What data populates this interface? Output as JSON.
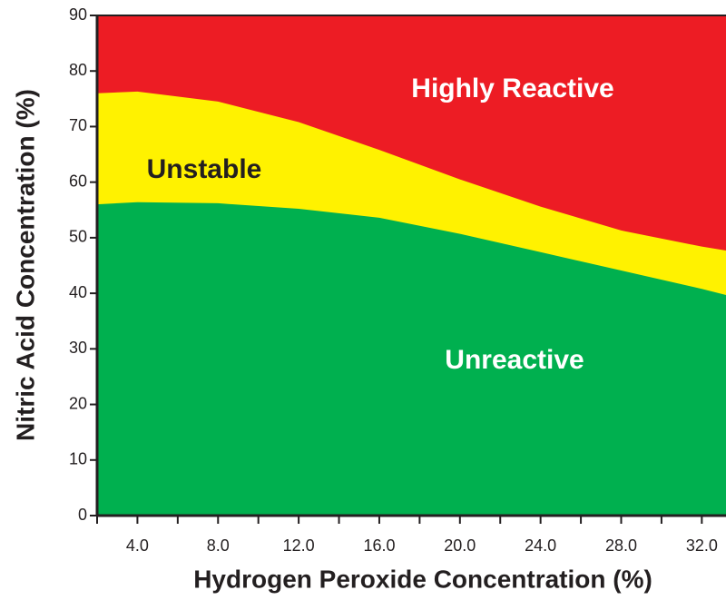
{
  "chart_data": {
    "type": "area",
    "x": [
      2,
      4,
      8,
      12,
      16,
      20,
      24,
      28,
      32,
      33.2
    ],
    "series": [
      {
        "name": "Unreactive",
        "color": "#00b04f",
        "label_color": "#ffffff",
        "values": [
          56.0,
          56.4,
          56.2,
          55.2,
          53.6,
          50.7,
          47.4,
          44.1,
          40.8,
          39.7
        ]
      },
      {
        "name": "Unstable",
        "color": "#fff200",
        "label_color": "#231f20",
        "values": [
          76.0,
          76.3,
          74.5,
          70.8,
          65.8,
          60.5,
          55.6,
          51.3,
          48.4,
          47.7
        ]
      }
    ],
    "background_region": {
      "name": "Highly Reactive",
      "color": "#ed1c24",
      "label_color": "#ffffff"
    },
    "xlabel": "Hydrogen Peroxide Concentration (%)",
    "ylabel": "Nitric Acid Concentration (%)",
    "xlim": [
      2,
      33.2
    ],
    "ylim": [
      0,
      90
    ],
    "xticks": [
      {
        "value": 4,
        "label": "4.0"
      },
      {
        "value": 8,
        "label": "8.0"
      },
      {
        "value": 12,
        "label": "12.0"
      },
      {
        "value": 16,
        "label": "16.0"
      },
      {
        "value": 20,
        "label": "20.0"
      },
      {
        "value": 24,
        "label": "24.0"
      },
      {
        "value": 28,
        "label": "28.0"
      },
      {
        "value": 32,
        "label": "32.0"
      }
    ],
    "xticks_minor": [
      2,
      6,
      10,
      14,
      18,
      22,
      26,
      30
    ],
    "yticks": [
      0,
      10,
      20,
      30,
      40,
      50,
      60,
      70,
      80,
      90
    ]
  }
}
